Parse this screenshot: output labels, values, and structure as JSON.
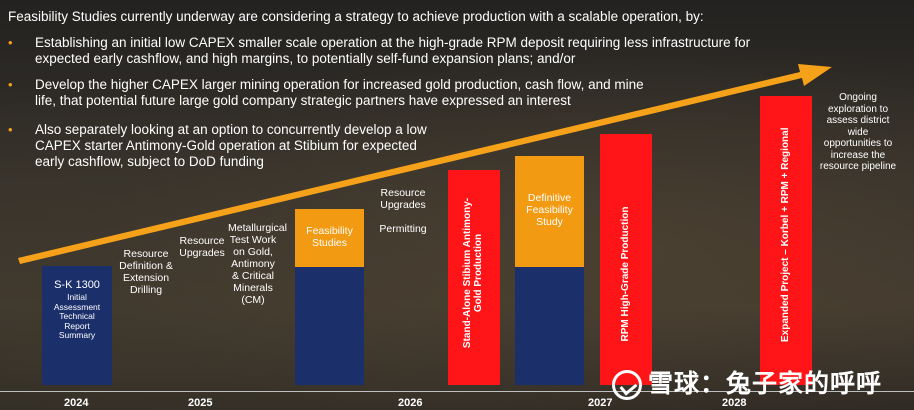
{
  "header": "Feasibility Studies currently underway are considering a strategy to achieve production with a scalable operation, by:",
  "bullets": [
    "Establishing an initial low CAPEX smaller scale operation at the high-grade RPM deposit requiring less infrastructure for expected early cashflow, and high margins, to potentially self-fund expansion plans; and/or",
    "Develop the higher CAPEX larger mining operation for increased gold production, cash flow, and mine life, that potential future large gold company strategic partners have expressed an interest",
    "Also separately looking at an option to concurrently develop a low CAPEX starter Antimony-Gold operation at Stibium for expected early cashflow, subject to DoD funding"
  ],
  "bullet_symbol": "•",
  "timeline": {
    "sk1300_title": "S-K 1300",
    "sk1300_sub": "Initial Assessment Technical Report Summary",
    "resource_definition": "Resource Definition & Extension Drilling",
    "resource_upgrades_1": "Resource Upgrades",
    "metallurgical": "Metallurgical Test Work on Gold, Antimony & Critical Minerals (CM)",
    "feasibility_studies": "Feasibility Studies",
    "resource_upgrades_2": "Resource Upgrades",
    "permitting": "Permitting",
    "stand_alone": "Stand-Alone Stibium Antimony-Gold Production",
    "definitive_feasibility": "Definitive Feasibility Study",
    "rpm_production": "RPM High-Grade Production",
    "expanded_project": "Expanded Project – Korbel + RPM + Regional",
    "ongoing_exploration": "Ongoing exploration to assess district wide opportunities to increase the resource pipeline"
  },
  "years": [
    "2024",
    "2025",
    "2026",
    "2027",
    "2028"
  ],
  "watermark": "雪球：兔子家的呼呼",
  "colors": {
    "navy": "#1b2f6b",
    "orange": "#f39a13",
    "red": "#ff1418",
    "arrow": "#f6a11a"
  }
}
